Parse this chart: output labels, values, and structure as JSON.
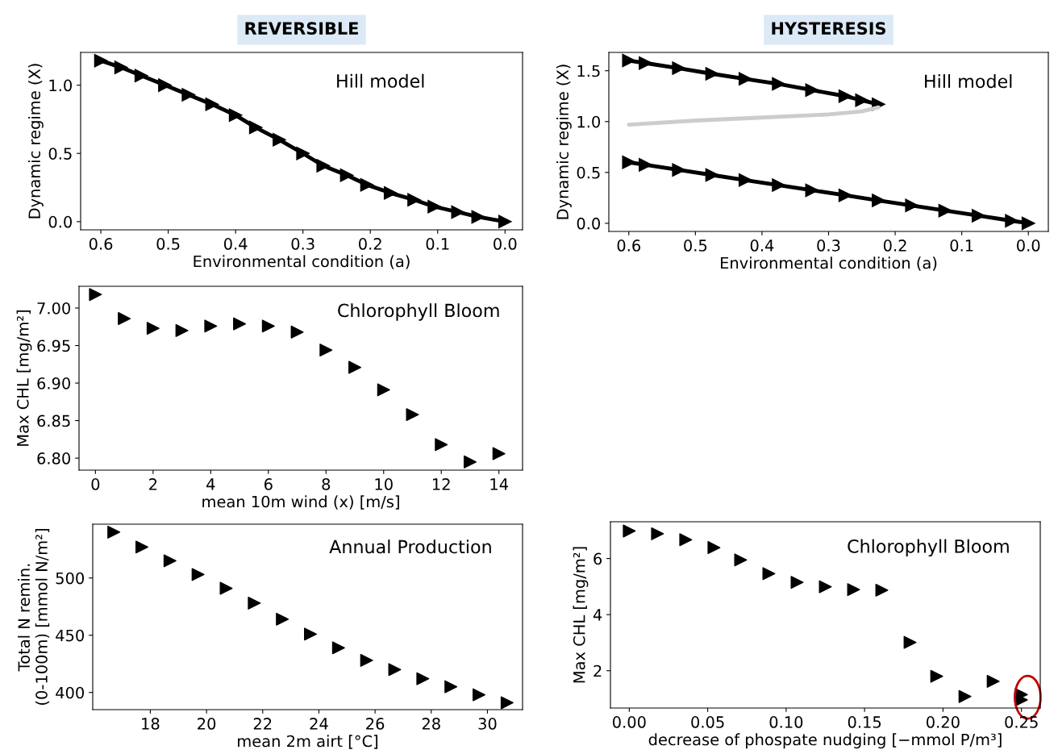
{
  "chart_data": [
    {
      "type": "line",
      "title": "REVERSIBLE",
      "xlabel": "Environmental condition (a)",
      "ylabel": "Dynamic regime (X)",
      "annotations": [
        "Hill model"
      ],
      "marker": "triangle",
      "line_style": "solid",
      "x": [
        0.6,
        0.57,
        0.54,
        0.505,
        0.47,
        0.435,
        0.4,
        0.37,
        0.335,
        0.3,
        0.27,
        0.235,
        0.205,
        0.17,
        0.135,
        0.105,
        0.07,
        0.04,
        0.0
      ],
      "series": [
        {
          "color": "#000000",
          "values": [
            1.18,
            1.13,
            1.07,
            1.0,
            0.93,
            0.86,
            0.78,
            0.69,
            0.6,
            0.5,
            0.41,
            0.34,
            0.27,
            0.21,
            0.16,
            0.11,
            0.07,
            0.035,
            0.0
          ]
        }
      ],
      "xlim": [
        0.63,
        -0.026
      ],
      "xticks": [
        0.6,
        0.5,
        0.4,
        0.3,
        0.2,
        0.1,
        {
          "value": 0,
          "label": "0.0"
        }
      ],
      "ylim": [
        -0.06,
        1.24
      ],
      "yticks": [
        {
          "value": 0,
          "label": "0.0"
        },
        0.5,
        {
          "value": 1,
          "label": "1.0"
        }
      ],
      "grid": false,
      "legend": false
    },
    {
      "type": "line",
      "title": "HYSTERESIS",
      "xlabel": "Environmental condition (a)",
      "ylabel": "Dynamic regime (X)",
      "annotations": [
        "Hill model"
      ],
      "line_style": "solid",
      "series": [
        {
          "color": "#000000",
          "marker": "triangle",
          "x": [
            0.6,
            0.575,
            0.525,
            0.475,
            0.425,
            0.375,
            0.325,
            0.275,
            0.25,
            0.225
          ],
          "values": [
            1.6,
            1.575,
            1.525,
            1.47,
            1.42,
            1.37,
            1.31,
            1.25,
            1.21,
            1.17
          ]
        },
        {
          "color": "#cccccc",
          "marker": "none",
          "x": [
            0.225,
            0.25,
            0.3,
            0.4,
            0.5,
            0.6
          ],
          "values": [
            1.14,
            1.1,
            1.07,
            1.04,
            1.01,
            0.97
          ]
        },
        {
          "color": "#000000",
          "marker": "triangle",
          "x": [
            0.6,
            0.575,
            0.525,
            0.475,
            0.425,
            0.375,
            0.325,
            0.275,
            0.225,
            0.175,
            0.125,
            0.075,
            0.025,
            0.0
          ],
          "values": [
            0.6,
            0.575,
            0.525,
            0.475,
            0.425,
            0.375,
            0.325,
            0.275,
            0.225,
            0.175,
            0.125,
            0.075,
            0.025,
            0.0
          ]
        }
      ],
      "xlim": [
        0.63,
        -0.03
      ],
      "xticks": [
        0.6,
        0.5,
        0.4,
        0.3,
        0.2,
        0.1,
        {
          "value": 0,
          "label": "0.0"
        }
      ],
      "ylim": [
        -0.08,
        1.68
      ],
      "yticks": [
        {
          "value": 0,
          "label": "0.0"
        },
        0.5,
        {
          "value": 1,
          "label": "1.0"
        },
        1.5
      ],
      "grid": false,
      "legend": false
    },
    {
      "type": "scatter",
      "xlabel": "mean 10m wind (x) [m/s]",
      "ylabel": "Max CHL [mg/m²]",
      "annotations": [
        "Chlorophyll Bloom"
      ],
      "marker": "triangle",
      "x": [
        0,
        1,
        2,
        3,
        4,
        5,
        6,
        7,
        8,
        9,
        10,
        11,
        12,
        13,
        14
      ],
      "series": [
        {
          "color": "#000000",
          "values": [
            7.018,
            6.986,
            6.973,
            6.97,
            6.976,
            6.979,
            6.976,
            6.968,
            6.944,
            6.921,
            6.891,
            6.858,
            6.818,
            6.795,
            6.806
          ]
        }
      ],
      "xlim": [
        -0.57,
        14.82
      ],
      "xticks": [
        0,
        2,
        4,
        6,
        8,
        10,
        12,
        14
      ],
      "ylim": [
        6.784,
        7.029
      ],
      "yticks": [
        {
          "value": 6.8,
          "label": "6.80"
        },
        {
          "value": 6.85,
          "label": "6.85"
        },
        {
          "value": 6.9,
          "label": "6.90"
        },
        {
          "value": 6.95,
          "label": "6.95"
        },
        {
          "value": 7.0,
          "label": "7.00"
        }
      ],
      "grid": false,
      "legend": false
    },
    {
      "type": "scatter",
      "xlabel": "mean 2m airt [°C]",
      "ylabel": "Total N remin.\n(0-100m) [mmol N/m²]",
      "annotations": [
        "Annual Production"
      ],
      "marker": "triangle",
      "x": [
        16.7,
        17.7,
        18.7,
        19.7,
        20.7,
        21.7,
        22.7,
        23.7,
        24.7,
        25.7,
        26.7,
        27.7,
        28.7,
        29.7,
        30.7
      ],
      "series": [
        {
          "color": "#000000",
          "values": [
            540,
            527,
            515,
            503,
            491,
            478,
            464,
            451,
            439,
            428,
            420,
            412,
            405,
            398,
            391
          ]
        }
      ],
      "xlim": [
        15.95,
        31.25
      ],
      "xticks": [
        18,
        20,
        22,
        24,
        26,
        28,
        30
      ],
      "ylim": [
        385,
        547
      ],
      "yticks": [
        400,
        450,
        500
      ],
      "grid": false,
      "legend": false
    },
    {
      "type": "scatter",
      "xlabel": "decrease of phospate nudging [−mmol P/m³]",
      "ylabel": "Max CHL [mg/m²]",
      "annotations": [
        "Chlorophyll Bloom"
      ],
      "marker": "triangle",
      "x": [
        0.0,
        0.018,
        0.036,
        0.054,
        0.071,
        0.089,
        0.107,
        0.125,
        0.143,
        0.161,
        0.179,
        0.196,
        0.214,
        0.232,
        0.25,
        0.25
      ],
      "series": [
        {
          "color": "#000000",
          "values": [
            6.98,
            6.88,
            6.67,
            6.39,
            5.95,
            5.46,
            5.15,
            4.99,
            4.89,
            4.87,
            3.01,
            1.8,
            1.08,
            1.62,
            1.15,
            0.96
          ]
        }
      ],
      "xlim": [
        -0.012,
        0.262
      ],
      "xticks": [
        {
          "value": 0.0,
          "label": "0.00"
        },
        0.05,
        {
          "value": 0.1,
          "label": "0.10"
        },
        0.15,
        {
          "value": 0.2,
          "label": "0.20"
        },
        0.25
      ],
      "ylim": [
        0.67,
        7.31
      ],
      "yticks": [
        2,
        4,
        6
      ],
      "grid": false,
      "legend": false
    }
  ]
}
